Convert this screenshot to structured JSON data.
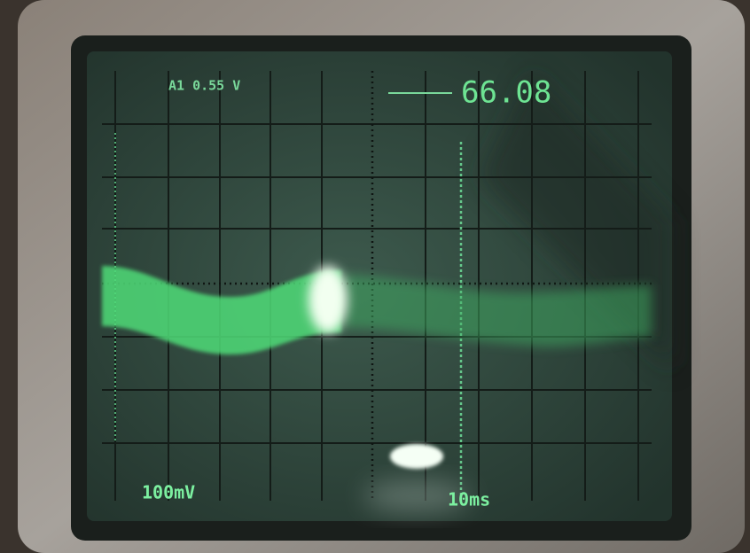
{
  "screen": {
    "top_left": "A1  0.55  V",
    "top_right": "66.08",
    "bottom_left": "100mV",
    "bottom_right": "10ms"
  }
}
